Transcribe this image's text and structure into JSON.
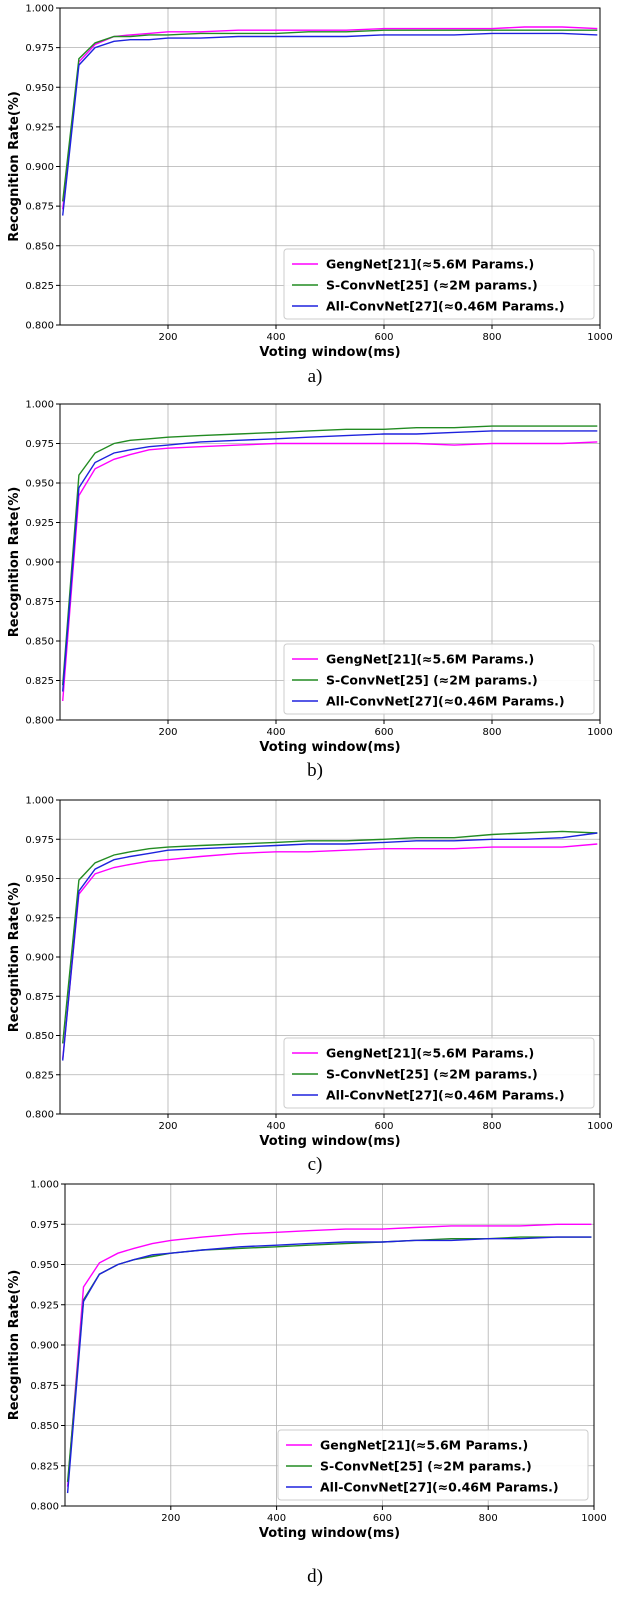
{
  "chart_data": [
    {
      "type": "line",
      "caption": "a)",
      "xlabel": "Voting window(ms)",
      "ylabel": "Recognition Rate(%)",
      "xlim": [
        0,
        1000
      ],
      "ylim": [
        0.8,
        1.0
      ],
      "xticks": [
        200,
        400,
        600,
        800,
        1000
      ],
      "yticks": [
        0.8,
        0.825,
        0.85,
        0.875,
        0.9,
        0.925,
        0.95,
        0.975,
        1.0
      ],
      "grid": true,
      "legend": "bottom-right",
      "x": [
        5,
        35,
        65,
        100,
        130,
        165,
        200,
        260,
        330,
        400,
        460,
        530,
        600,
        660,
        730,
        800,
        860,
        930,
        995
      ],
      "series": [
        {
          "name": "GengNet[21](≈5.6M Params.)",
          "color": "#ff00ff",
          "values": [
            0.873,
            0.966,
            0.977,
            0.982,
            0.983,
            0.984,
            0.985,
            0.985,
            0.986,
            0.986,
            0.986,
            0.986,
            0.987,
            0.987,
            0.987,
            0.987,
            0.988,
            0.988,
            0.987
          ]
        },
        {
          "name": "S-ConvNet[25] (≈2M params.)",
          "color": "#228b22",
          "values": [
            0.878,
            0.968,
            0.978,
            0.982,
            0.982,
            0.983,
            0.983,
            0.984,
            0.984,
            0.984,
            0.985,
            0.985,
            0.986,
            0.986,
            0.986,
            0.986,
            0.986,
            0.986,
            0.986
          ]
        },
        {
          "name": "All-ConvNet[27](≈0.46M Params.)",
          "color": "#1e22dd",
          "values": [
            0.869,
            0.964,
            0.975,
            0.979,
            0.98,
            0.98,
            0.981,
            0.981,
            0.982,
            0.982,
            0.982,
            0.982,
            0.983,
            0.983,
            0.983,
            0.984,
            0.984,
            0.984,
            0.983
          ]
        }
      ]
    },
    {
      "type": "line",
      "caption": "b)",
      "xlabel": "Voting window(ms)",
      "ylabel": "Recognition Rate(%)",
      "xlim": [
        0,
        1000
      ],
      "ylim": [
        0.8,
        1.0
      ],
      "xticks": [
        200,
        400,
        600,
        800,
        1000
      ],
      "yticks": [
        0.8,
        0.825,
        0.85,
        0.875,
        0.9,
        0.925,
        0.95,
        0.975,
        1.0
      ],
      "grid": true,
      "legend": "bottom-right",
      "x": [
        5,
        35,
        65,
        100,
        130,
        165,
        200,
        260,
        330,
        400,
        460,
        530,
        600,
        660,
        730,
        800,
        860,
        930,
        995
      ],
      "series": [
        {
          "name": "GengNet[21](≈5.6M Params.)",
          "color": "#ff00ff",
          "values": [
            0.812,
            0.942,
            0.959,
            0.965,
            0.968,
            0.971,
            0.972,
            0.973,
            0.974,
            0.975,
            0.975,
            0.975,
            0.975,
            0.975,
            0.974,
            0.975,
            0.975,
            0.975,
            0.976
          ]
        },
        {
          "name": "S-ConvNet[25] (≈2M params.)",
          "color": "#228b22",
          "values": [
            0.822,
            0.955,
            0.969,
            0.975,
            0.977,
            0.978,
            0.979,
            0.98,
            0.981,
            0.982,
            0.983,
            0.984,
            0.984,
            0.985,
            0.985,
            0.986,
            0.986,
            0.986,
            0.986
          ]
        },
        {
          "name": "All-ConvNet[27](≈0.46M Params.)",
          "color": "#1e22dd",
          "values": [
            0.818,
            0.947,
            0.963,
            0.969,
            0.971,
            0.973,
            0.974,
            0.976,
            0.977,
            0.978,
            0.979,
            0.98,
            0.981,
            0.981,
            0.982,
            0.983,
            0.983,
            0.983,
            0.983
          ]
        }
      ]
    },
    {
      "type": "line",
      "caption": "c)",
      "xlabel": "Voting window(ms)",
      "ylabel": "Recognition Rate(%)",
      "xlim": [
        0,
        1000
      ],
      "ylim": [
        0.8,
        1.0
      ],
      "xticks": [
        200,
        400,
        600,
        800,
        1000
      ],
      "yticks": [
        0.8,
        0.825,
        0.85,
        0.875,
        0.9,
        0.925,
        0.95,
        0.975,
        1.0
      ],
      "grid": true,
      "legend": "bottom-right",
      "x": [
        5,
        35,
        65,
        100,
        130,
        165,
        200,
        260,
        330,
        400,
        460,
        530,
        600,
        660,
        730,
        800,
        860,
        930,
        995
      ],
      "series": [
        {
          "name": "GengNet[21](≈5.6M Params.)",
          "color": "#ff00ff",
          "values": [
            0.835,
            0.94,
            0.953,
            0.957,
            0.959,
            0.961,
            0.962,
            0.964,
            0.966,
            0.967,
            0.967,
            0.968,
            0.969,
            0.969,
            0.969,
            0.97,
            0.97,
            0.97,
            0.972
          ]
        },
        {
          "name": "S-ConvNet[25] (≈2M params.)",
          "color": "#228b22",
          "values": [
            0.845,
            0.949,
            0.96,
            0.965,
            0.967,
            0.969,
            0.97,
            0.971,
            0.972,
            0.973,
            0.974,
            0.974,
            0.975,
            0.976,
            0.976,
            0.978,
            0.979,
            0.98,
            0.979
          ]
        },
        {
          "name": "All-ConvNet[27](≈0.46M Params.)",
          "color": "#1e22dd",
          "values": [
            0.834,
            0.942,
            0.956,
            0.962,
            0.964,
            0.966,
            0.968,
            0.969,
            0.97,
            0.971,
            0.972,
            0.972,
            0.973,
            0.974,
            0.974,
            0.975,
            0.975,
            0.976,
            0.979
          ]
        }
      ]
    },
    {
      "type": "line",
      "caption": "d)",
      "xlabel": "Voting window(ms)",
      "ylabel": "Recognition Rate(%)",
      "xlim": [
        0,
        1000
      ],
      "ylim": [
        0.8,
        1.0
      ],
      "xticks": [
        200,
        400,
        600,
        800,
        1000
      ],
      "yticks": [
        0.8,
        0.825,
        0.85,
        0.875,
        0.9,
        0.925,
        0.95,
        0.975,
        1.0
      ],
      "grid": true,
      "legend": "bottom-right",
      "x": [
        5,
        35,
        65,
        100,
        130,
        165,
        200,
        260,
        330,
        400,
        460,
        530,
        600,
        660,
        730,
        800,
        860,
        930,
        995
      ],
      "series": [
        {
          "name": "GengNet[21](≈5.6M Params.)",
          "color": "#ff00ff",
          "values": [
            0.812,
            0.936,
            0.951,
            0.957,
            0.96,
            0.963,
            0.965,
            0.967,
            0.969,
            0.97,
            0.971,
            0.972,
            0.972,
            0.973,
            0.974,
            0.974,
            0.974,
            0.975,
            0.975
          ]
        },
        {
          "name": "S-ConvNet[25] (≈2M params.)",
          "color": "#228b22",
          "values": [
            0.815,
            0.928,
            0.944,
            0.95,
            0.953,
            0.955,
            0.957,
            0.959,
            0.96,
            0.961,
            0.962,
            0.963,
            0.964,
            0.965,
            0.966,
            0.966,
            0.967,
            0.967,
            0.967
          ]
        },
        {
          "name": "All-ConvNet[27](≈0.46M Params.)",
          "color": "#1e22dd",
          "values": [
            0.808,
            0.927,
            0.944,
            0.95,
            0.953,
            0.956,
            0.957,
            0.959,
            0.961,
            0.962,
            0.963,
            0.964,
            0.964,
            0.965,
            0.965,
            0.966,
            0.966,
            0.967,
            0.967
          ]
        }
      ]
    }
  ]
}
